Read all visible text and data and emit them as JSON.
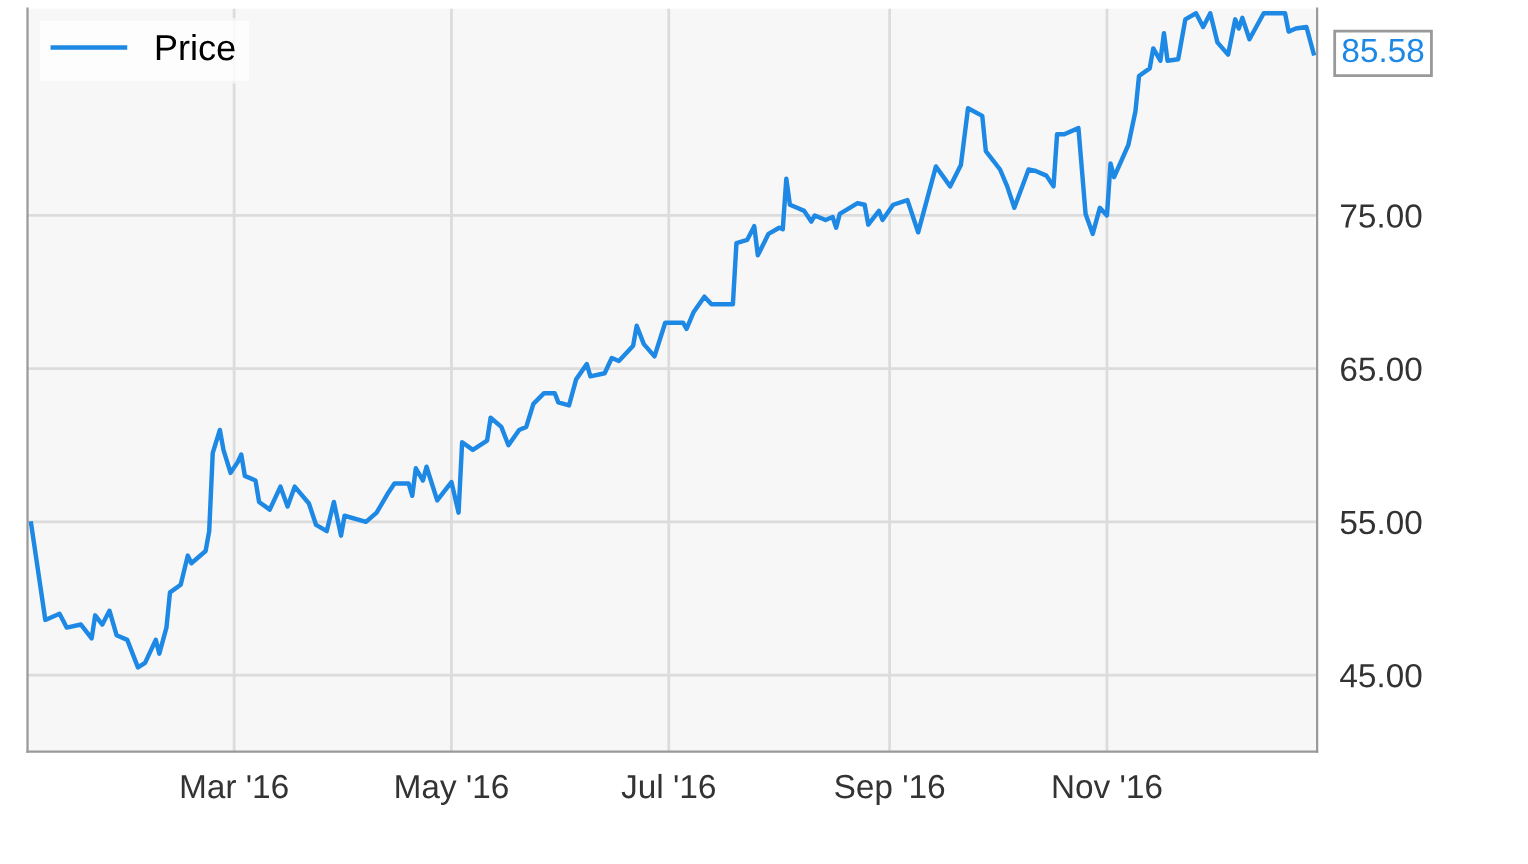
{
  "chart_data": {
    "type": "line",
    "legend": "top left",
    "grid": true,
    "marker": "none",
    "line_style": "solid",
    "xlim": [
      "2016-01-03",
      "2016-12-30"
    ],
    "xticks": [
      {
        "value": "2016-03-01",
        "label": "Mar '16"
      },
      {
        "value": "2016-05-01",
        "label": "May '16"
      },
      {
        "value": "2016-07-01",
        "label": "Jul '16"
      },
      {
        "value": "2016-09-01",
        "label": "Sep '16"
      },
      {
        "value": "2016-11-01",
        "label": "Nov '16"
      }
    ],
    "ylim": [
      40,
      88.5
    ],
    "yticks": [
      {
        "value": 45,
        "label": "45.00"
      },
      {
        "value": 55,
        "label": "55.00"
      },
      {
        "value": 65,
        "label": "65.00"
      },
      {
        "value": 75,
        "label": "75.00"
      }
    ],
    "annotations": [
      {
        "text": "85.58",
        "x": "2016-12-29",
        "y": 85.58
      }
    ],
    "x": [
      "2016-01-04",
      "2016-01-08",
      "2016-01-12",
      "2016-01-14",
      "2016-01-18",
      "2016-01-21",
      "2016-01-22",
      "2016-01-24",
      "2016-01-26",
      "2016-01-28",
      "2016-01-31",
      "2016-02-03",
      "2016-02-05",
      "2016-02-08",
      "2016-02-09",
      "2016-02-11",
      "2016-02-12",
      "2016-02-15",
      "2016-02-17",
      "2016-02-18",
      "2016-02-22",
      "2016-02-23",
      "2016-02-24",
      "2016-02-26",
      "2016-02-27",
      "2016-02-29",
      "2016-03-02",
      "2016-03-03",
      "2016-03-04",
      "2016-03-07",
      "2016-03-08",
      "2016-03-11",
      "2016-03-14",
      "2016-03-16",
      "2016-03-18",
      "2016-03-22",
      "2016-03-24",
      "2016-03-27",
      "2016-03-29",
      "2016-03-31",
      "2016-04-01",
      "2016-04-07",
      "2016-04-10",
      "2016-04-13",
      "2016-04-15",
      "2016-04-19",
      "2016-04-20",
      "2016-04-21",
      "2016-04-23",
      "2016-04-24",
      "2016-04-27",
      "2016-05-01",
      "2016-05-03",
      "2016-05-04",
      "2016-05-07",
      "2016-05-11",
      "2016-05-12",
      "2016-05-15",
      "2016-05-17",
      "2016-05-20",
      "2016-05-22",
      "2016-05-24",
      "2016-05-27",
      "2016-05-30",
      "2016-05-31",
      "2016-06-03",
      "2016-06-05",
      "2016-06-08",
      "2016-06-09",
      "2016-06-13",
      "2016-06-15",
      "2016-06-17",
      "2016-06-21",
      "2016-06-22",
      "2016-06-24",
      "2016-06-27",
      "2016-06-30",
      "2016-07-05",
      "2016-07-06",
      "2016-07-08",
      "2016-07-11",
      "2016-07-13",
      "2016-07-19",
      "2016-07-20",
      "2016-07-23",
      "2016-07-25",
      "2016-07-26",
      "2016-07-29",
      "2016-08-01",
      "2016-08-02",
      "2016-08-03",
      "2016-08-04",
      "2016-08-06",
      "2016-08-08",
      "2016-08-10",
      "2016-08-11",
      "2016-08-14",
      "2016-08-16",
      "2016-08-17",
      "2016-08-18",
      "2016-08-23",
      "2016-08-25",
      "2016-08-26",
      "2016-08-29",
      "2016-08-30",
      "2016-09-02",
      "2016-09-06",
      "2016-09-09",
      "2016-09-14",
      "2016-09-18",
      "2016-09-21",
      "2016-09-23",
      "2016-09-27",
      "2016-09-28",
      "2016-10-02",
      "2016-10-04",
      "2016-10-06",
      "2016-10-10",
      "2016-10-12",
      "2016-10-15",
      "2016-10-17",
      "2016-10-18",
      "2016-10-20",
      "2016-10-24",
      "2016-10-26",
      "2016-10-28",
      "2016-10-30",
      "2016-11-01",
      "2016-11-02",
      "2016-11-03",
      "2016-11-07",
      "2016-11-09",
      "2016-11-10",
      "2016-11-13",
      "2016-11-14",
      "2016-11-16",
      "2016-11-17",
      "2016-11-18",
      "2016-11-21",
      "2016-11-23",
      "2016-11-26",
      "2016-11-28",
      "2016-11-30",
      "2016-12-02",
      "2016-12-05",
      "2016-12-07",
      "2016-12-08",
      "2016-12-09",
      "2016-12-11",
      "2016-12-15",
      "2016-12-21",
      "2016-12-22",
      "2016-12-24",
      "2016-12-27",
      "2016-12-29"
    ],
    "series": [
      {
        "name": "Price",
        "color": "#1e88e5",
        "values": [
          54.9,
          48.6,
          49.0,
          48.1,
          48.3,
          47.4,
          48.9,
          48.3,
          49.2,
          47.6,
          47.3,
          45.5,
          45.8,
          47.3,
          46.4,
          48.1,
          50.4,
          50.9,
          52.8,
          52.3,
          53.1,
          54.4,
          59.5,
          61.0,
          59.7,
          58.2,
          58.9,
          59.4,
          58.0,
          57.7,
          56.3,
          55.8,
          57.3,
          56.0,
          57.3,
          56.2,
          54.8,
          54.4,
          56.3,
          54.1,
          55.4,
          55.0,
          55.6,
          56.8,
          57.5,
          57.5,
          56.7,
          58.5,
          57.7,
          58.6,
          56.4,
          57.6,
          55.6,
          60.2,
          59.7,
          60.3,
          61.8,
          61.2,
          60.0,
          61.0,
          61.2,
          62.7,
          63.4,
          63.4,
          62.8,
          62.6,
          64.3,
          65.3,
          64.5,
          64.7,
          65.7,
          65.5,
          66.5,
          67.8,
          66.6,
          65.8,
          68.0,
          68.0,
          67.6,
          68.7,
          69.7,
          69.2,
          69.2,
          73.2,
          73.4,
          74.3,
          72.4,
          73.8,
          74.2,
          74.1,
          77.4,
          75.7,
          75.5,
          75.3,
          74.6,
          75.0,
          74.7,
          74.9,
          74.2,
          75.1,
          75.8,
          75.7,
          74.4,
          75.3,
          74.7,
          75.7,
          76.0,
          73.9,
          78.2,
          76.9,
          78.3,
          82.0,
          81.5,
          79.2,
          78.0,
          76.9,
          75.5,
          78.0,
          77.9,
          77.6,
          76.9,
          80.3,
          80.3,
          80.7,
          75.1,
          73.8,
          75.5,
          75.0,
          78.4,
          77.5,
          79.6,
          81.8,
          84.1,
          84.6,
          85.9,
          85.1,
          86.9,
          85.1,
          85.2,
          87.8,
          88.2,
          87.3,
          88.2,
          86.3,
          85.5,
          87.8,
          87.2,
          87.9,
          86.5,
          88.2,
          88.2,
          87.0,
          87.2,
          87.3,
          85.58
        ]
      }
    ]
  }
}
